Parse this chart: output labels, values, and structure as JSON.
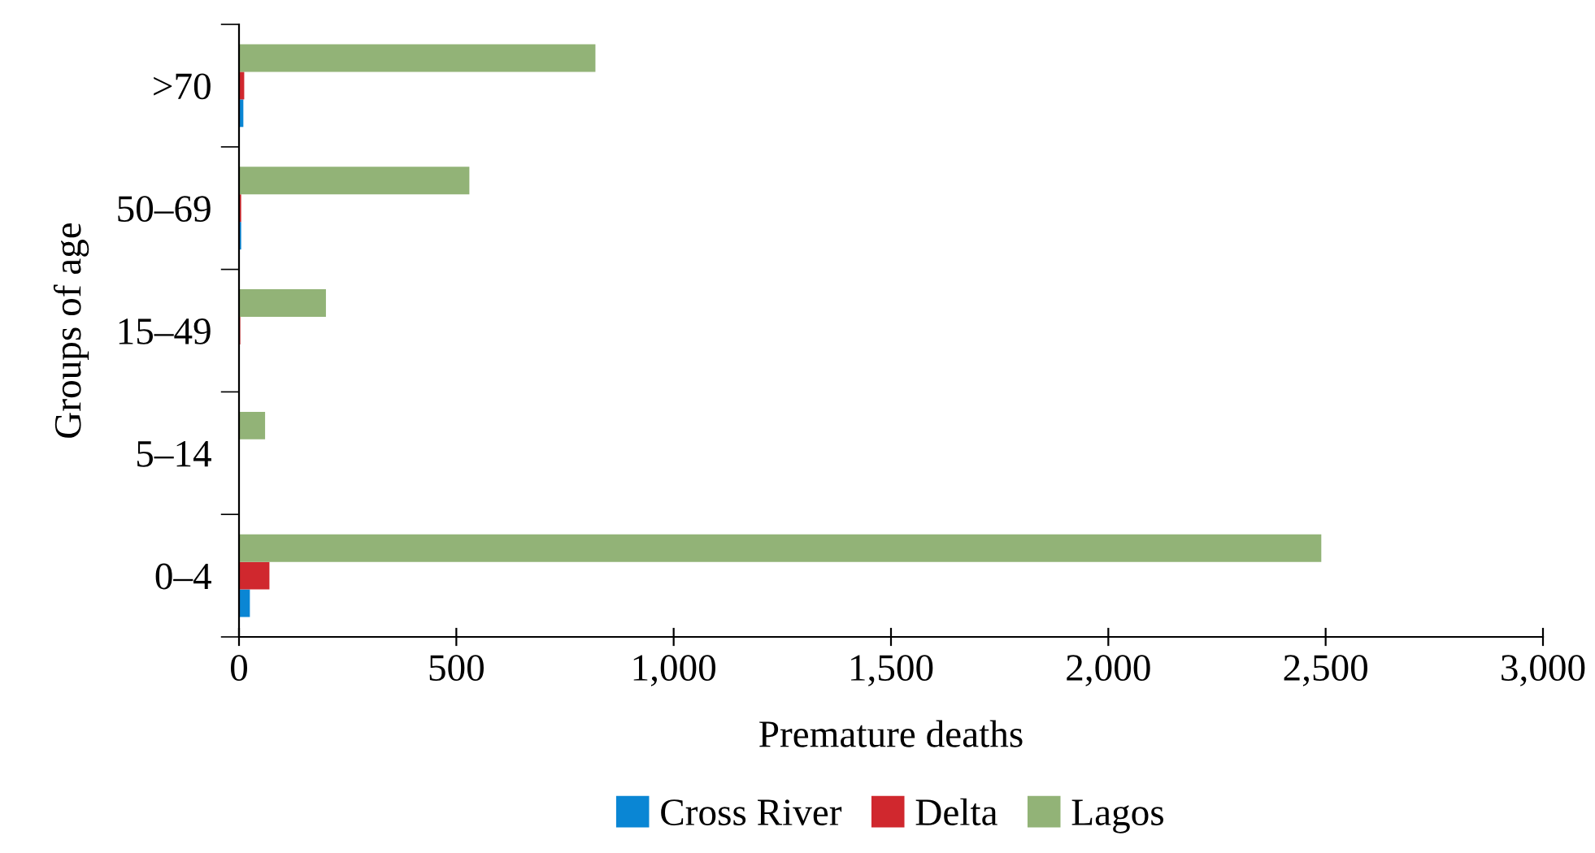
{
  "chart_data": {
    "type": "bar",
    "orientation": "horizontal",
    "xlabel": "Premature deaths",
    "ylabel": "Groups of age",
    "categories": [
      ">70",
      "50–69",
      "15–49",
      "5–14",
      "0–4"
    ],
    "series": [
      {
        "name": "Cross River",
        "color": "#0a86d4",
        "values": [
          10,
          5,
          null,
          0,
          25
        ]
      },
      {
        "name": "Delta",
        "color": "#d0282e",
        "values": [
          12,
          5,
          3,
          0,
          70
        ]
      },
      {
        "name": "Lagos",
        "color": "#92b377",
        "values": [
          820,
          530,
          200,
          60,
          2490
        ]
      }
    ],
    "xlim": [
      0,
      3000
    ],
    "xticks": [
      {
        "value": 0,
        "label": "0"
      },
      {
        "value": 500,
        "label": "500"
      },
      {
        "value": 1000,
        "label": "1,000"
      },
      {
        "value": 1500,
        "label": "1,500"
      },
      {
        "value": 2000,
        "label": "2,000"
      },
      {
        "value": 2500,
        "label": "2,500"
      },
      {
        "value": 3000,
        "label": "3,000"
      }
    ],
    "grid": false,
    "legend": "bottom"
  }
}
